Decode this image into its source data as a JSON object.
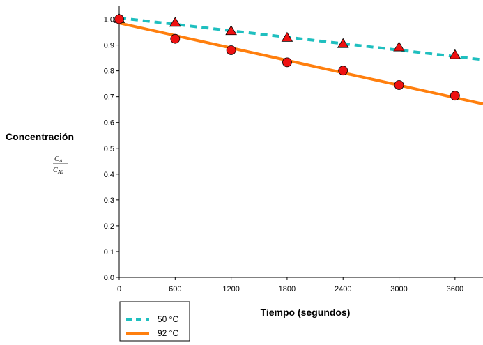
{
  "chart_data": {
    "type": "scatter",
    "title": "",
    "xlabel": "Tiempo (segundos)",
    "ylabel": "Concentración",
    "ylabel_fraction": {
      "numerator": "C",
      "numerator_sub": "A",
      "denominator": "C",
      "denominator_sub": "A0"
    },
    "xlim": [
      0,
      3900
    ],
    "ylim": [
      0,
      1.05
    ],
    "x_ticks": [
      0,
      600,
      1200,
      1800,
      2400,
      3000,
      3600
    ],
    "x_tick_labels": [
      "0",
      "600",
      "1200",
      "1800",
      "2400",
      "3000",
      "3600"
    ],
    "y_ticks": [
      0,
      0.1,
      0.2,
      0.3,
      0.4,
      0.5,
      0.6,
      0.7,
      0.8,
      0.9,
      1.0
    ],
    "y_tick_labels": [
      "0.0",
      "0.1",
      "0.2",
      "0.3",
      "0.4",
      "0.5",
      "0.6",
      "0.7",
      "0.8",
      "0.9",
      "1.0"
    ],
    "grid": false,
    "legend_position": "bottom-left",
    "series": [
      {
        "name": "50 °C",
        "marker": "triangle",
        "line_style": "dashed",
        "line_color": "#1fbfbf",
        "marker_color": "#ee1111",
        "x": [
          0,
          600,
          1200,
          1800,
          2400,
          3000,
          3600
        ],
        "y": [
          1.0,
          0.985,
          0.953,
          0.927,
          0.903,
          0.89,
          0.86
        ],
        "fit": {
          "x": [
            0,
            3900
          ],
          "y": [
            1.005,
            0.843
          ]
        }
      },
      {
        "name": "92 °C",
        "marker": "circle",
        "line_style": "solid",
        "line_color": "#ff7f0e",
        "marker_color": "#ee1111",
        "x": [
          0,
          600,
          1200,
          1800,
          2400,
          3000,
          3600
        ],
        "y": [
          1.0,
          0.924,
          0.88,
          0.833,
          0.801,
          0.745,
          0.704
        ],
        "fit": {
          "x": [
            0,
            3900
          ],
          "y": [
            0.985,
            0.672
          ]
        }
      }
    ]
  }
}
